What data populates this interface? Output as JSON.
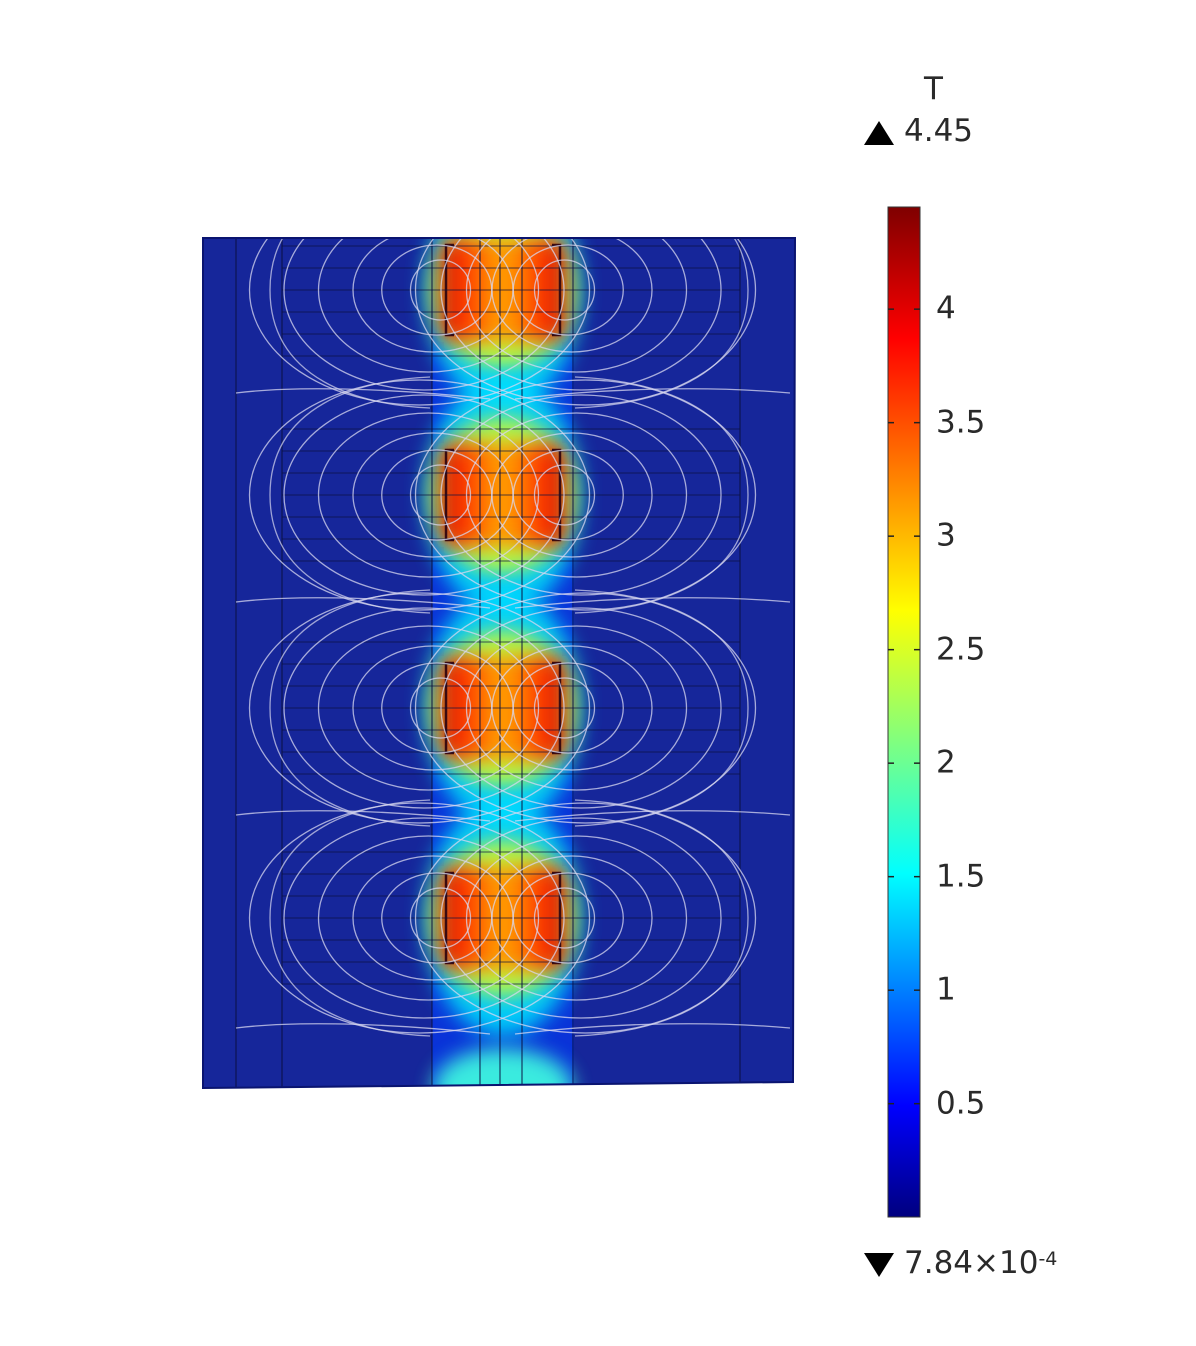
{
  "chart_data": {
    "type": "heatmap",
    "title": "",
    "colorbar": {
      "unit": "T",
      "max_label": "4.45",
      "min_label_mantissa": "7.84×10",
      "min_label_exponent": "-4",
      "max": 4.45,
      "min": 0.000784,
      "ticks": [
        {
          "value": 4,
          "label": "4"
        },
        {
          "value": 3.5,
          "label": "3.5"
        },
        {
          "value": 3,
          "label": "3"
        },
        {
          "value": 2.5,
          "label": "2.5"
        },
        {
          "value": 2,
          "label": "2"
        },
        {
          "value": 1.5,
          "label": "1.5"
        },
        {
          "value": 1,
          "label": "1"
        },
        {
          "value": 0.5,
          "label": "0.5"
        }
      ],
      "colormap": "rainbow (dark blue - cyan - yellow - red - dark red)"
    },
    "field": {
      "pole_count": 4,
      "peak_value": 4.45,
      "background_value": 0.3,
      "contours": "white field-line contours around each pole pair"
    }
  }
}
